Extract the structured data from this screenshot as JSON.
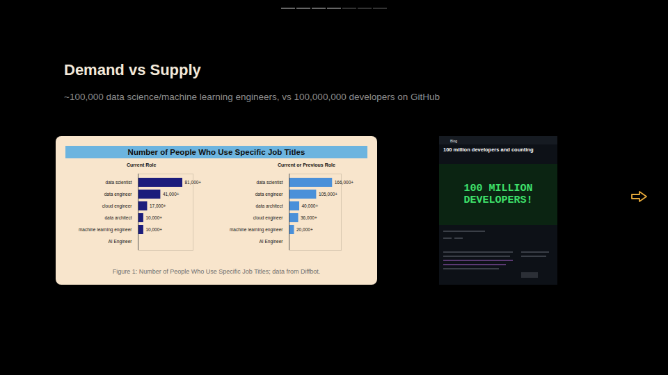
{
  "title": "Demand vs Supply",
  "subtitle": "~100,000 data science/machine learning engineers, vs 100,000,000 developers on GitHub",
  "figure": {
    "title": "Number of People Who Use Specific Job Titles",
    "caption": "Figure 1: Number of People Who Use Specific Job Titles; data from Diffbot."
  },
  "chart_data": [
    {
      "type": "bar",
      "orientation": "horizontal",
      "title": "Current Role",
      "categories": [
        "data scientist",
        "data engineer",
        "cloud engineer",
        "data architect",
        "machine learning engineer",
        "AI Engineer"
      ],
      "values": [
        81000,
        41000,
        17000,
        10000,
        10000,
        1000
      ],
      "value_labels": [
        "81,000+",
        "41,000+",
        "17,000+",
        "10,000+",
        "10,000+",
        null
      ],
      "color": "#1c1c7c",
      "xlim": [
        0,
        100000
      ],
      "tick_labels": "y",
      "data_labels": true
    },
    {
      "type": "bar",
      "orientation": "horizontal",
      "title": "Current or Previous Role",
      "categories": [
        "data scientist",
        "data engineer",
        "data architect",
        "cloud engineer",
        "machine learning engineer",
        "AI Engineer"
      ],
      "values": [
        166000,
        105000,
        40000,
        36000,
        20000,
        2000
      ],
      "value_labels": [
        "166,000+",
        "105,000+",
        "40,000+",
        "36,000+",
        "20,000+",
        null
      ],
      "color": "#4a90d9",
      "xlim": [
        0,
        200000
      ],
      "tick_labels": "y",
      "data_labels": true
    }
  ],
  "screenshot": {
    "site": "Blog",
    "headline": "100 million developers and counting",
    "banner": "100 MILLION DEVELOPERS!"
  }
}
